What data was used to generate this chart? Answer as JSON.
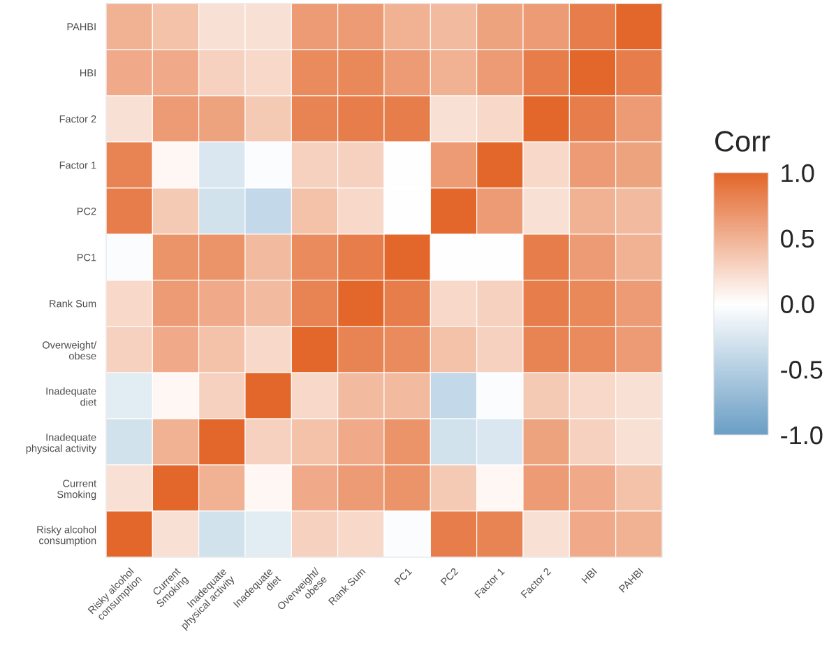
{
  "chart_data": {
    "type": "heatmap",
    "clabel": "Corr",
    "categories": [
      "Risky alcohol\nconsumption",
      "Current\nSmoking",
      "Inadequate\nphysical activity",
      "Inadequate\ndiet",
      "Overweight/\nobese",
      "Rank Sum",
      "PC1",
      "PC2",
      "Factor 1",
      "Factor 2",
      "HBI",
      "PAHBI"
    ],
    "y_categories": [
      "PAHBI",
      "HBI",
      "Factor 2",
      "Factor 1",
      "PC2",
      "PC1",
      "Rank Sum",
      "Overweight/\nobese",
      "Inadequate\ndiet",
      "Inadequate\nphysical activity",
      "Current\nSmoking",
      "Risky alcohol\nconsumption"
    ],
    "cells": [
      [
        0.5,
        0.4,
        0.2,
        0.2,
        0.65,
        0.65,
        0.5,
        0.45,
        0.6,
        0.65,
        0.85,
        1
      ],
      [
        0.55,
        0.55,
        0.3,
        0.25,
        0.75,
        0.78,
        0.65,
        0.5,
        0.65,
        0.85,
        1,
        0.85
      ],
      [
        0.2,
        0.65,
        0.6,
        0.35,
        0.8,
        0.85,
        0.85,
        0.2,
        0.25,
        1,
        0.85,
        0.65
      ],
      [
        0.8,
        0.05,
        -0.25,
        -0.03,
        0.3,
        0.3,
        0,
        0.65,
        1,
        0.25,
        0.65,
        0.6
      ],
      [
        0.85,
        0.35,
        -0.3,
        -0.4,
        0.4,
        0.25,
        0,
        1,
        0.65,
        0.2,
        0.5,
        0.45
      ],
      [
        -0.03,
        0.7,
        0.7,
        0.45,
        0.75,
        0.85,
        1,
        0,
        0,
        0.85,
        0.65,
        0.5
      ],
      [
        0.25,
        0.65,
        0.55,
        0.45,
        0.8,
        1,
        0.85,
        0.25,
        0.3,
        0.85,
        0.78,
        0.65
      ],
      [
        0.3,
        0.55,
        0.4,
        0.25,
        1,
        0.8,
        0.75,
        0.4,
        0.3,
        0.8,
        0.75,
        0.65
      ],
      [
        -0.2,
        0.05,
        0.3,
        1,
        0.25,
        0.45,
        0.45,
        -0.4,
        -0.03,
        0.35,
        0.25,
        0.2
      ],
      [
        -0.3,
        0.5,
        1,
        0.3,
        0.4,
        0.55,
        0.7,
        -0.3,
        -0.25,
        0.6,
        0.3,
        0.2
      ],
      [
        0.2,
        1,
        0.5,
        0.05,
        0.55,
        0.65,
        0.7,
        0.35,
        0.05,
        0.65,
        0.55,
        0.4
      ],
      [
        1,
        0.2,
        -0.3,
        -0.2,
        0.3,
        0.25,
        -0.03,
        0.85,
        0.8,
        0.2,
        0.55,
        0.5
      ]
    ],
    "clim": [
      -1,
      1
    ],
    "cticks": [
      {
        "value": -1,
        "label": "-1.0"
      },
      {
        "value": -0.5,
        "label": "-0.5"
      },
      {
        "value": 0,
        "label": "0.0"
      },
      {
        "value": 0.5,
        "label": "0.5"
      },
      {
        "value": 1,
        "label": "1.0"
      }
    ]
  }
}
